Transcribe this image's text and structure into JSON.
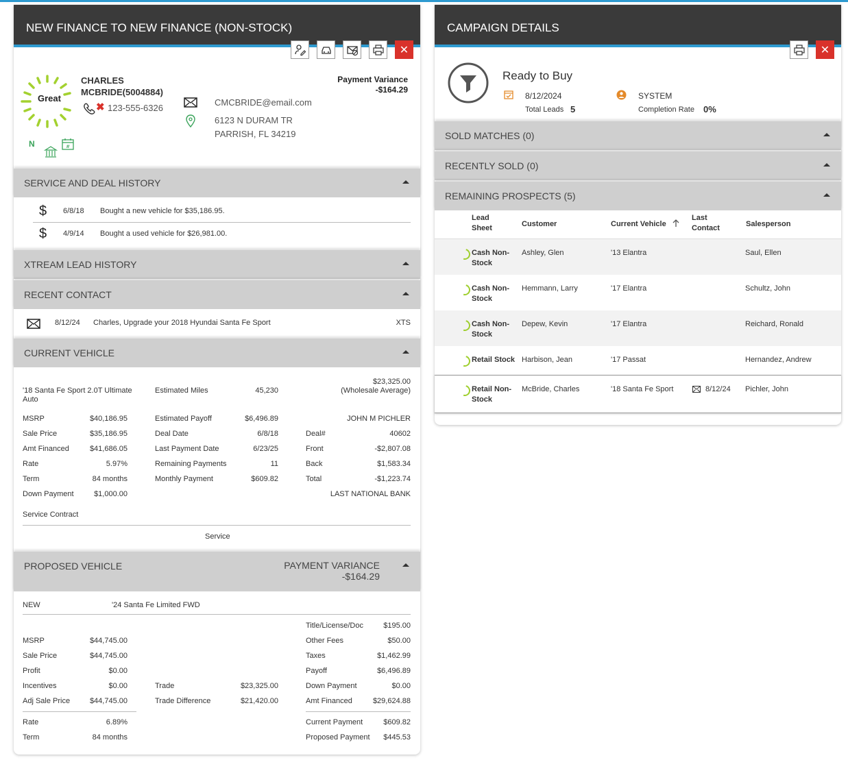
{
  "left": {
    "title": "NEW FINANCE TO NEW FINANCE (NON-STOCK)",
    "customer": {
      "score": "Great",
      "name_line1": "CHARLES",
      "name_line2": "MCBRIDE(5004884)",
      "phone": "123-555-6326",
      "email": "CMCBRIDE@email.com",
      "address1": "6123 N DURAM TR",
      "address2": "PARRISH, FL 34219",
      "flag": "N",
      "pv_label": "Payment Variance",
      "pv_value": "-$164.29"
    },
    "service_deal": {
      "title": "SERVICE AND DEAL HISTORY",
      "items": [
        {
          "date": "6/8/18",
          "text": "Bought a new vehicle for $35,186.95."
        },
        {
          "date": "4/9/14",
          "text": "Bought a used vehicle for $26,981.00."
        }
      ]
    },
    "xtream": {
      "title": "XTREAM LEAD HISTORY"
    },
    "recent_contact": {
      "title": "RECENT CONTACT",
      "date": "8/12/24",
      "text": "Charles, Upgrade your 2018 Hyundai Santa Fe Sport",
      "source": "XTS"
    },
    "current_vehicle": {
      "title": "CURRENT VEHICLE",
      "vehicle_1": "'18 Santa Fe Sport 2.0T Ultimate",
      "vehicle_2": "Auto",
      "est_miles_label": "Estimated Miles",
      "est_miles": "45,230",
      "value": "$23,325.00",
      "value_note": "(Wholesale Average)",
      "rows": [
        {
          "l1": "MSRP",
          "v1": "$40,186.95",
          "l2": "Estimated Payoff",
          "v2": "$6,496.89",
          "l3": "",
          "v3": "JOHN M PICHLER"
        },
        {
          "l1": "Sale Price",
          "v1": "$35,186.95",
          "l2": "Deal Date",
          "v2": "6/8/18",
          "l3": "Deal#",
          "v3": "40602"
        },
        {
          "l1": "Amt Financed",
          "v1": "$41,686.05",
          "l2": "Last Payment Date",
          "v2": "6/23/25",
          "l3": "Front",
          "v3": "-$2,807.08"
        },
        {
          "l1": "Rate",
          "v1": "5.97%",
          "l2": "Remaining Payments",
          "v2": "11",
          "l3": "Back",
          "v3": "$1,583.34"
        },
        {
          "l1": "Term",
          "v1": "84 months",
          "l2": "Monthly Payment",
          "v2": "$609.82",
          "l3": "Total",
          "v3": "-$1,223.74"
        },
        {
          "l1": "Down Payment",
          "v1": "$1,000.00",
          "l2": "",
          "v2": "",
          "l3": "",
          "v3": "LAST NATIONAL BANK"
        }
      ],
      "service_contract": "Service Contract",
      "service": "Service"
    },
    "proposed_vehicle": {
      "title": "PROPOSED VEHICLE",
      "pv_label": "PAYMENT VARIANCE",
      "pv_value": "-$164.29",
      "condition": "NEW",
      "vehicle": "'24 Santa Fe Limited FWD",
      "title_label": "Title/License/Doc",
      "title_value": "$195.00",
      "rows": [
        {
          "l1": "MSRP",
          "v1": "$44,745.00",
          "l2": "",
          "v2": "",
          "l3": "Other Fees",
          "v3": "$50.00"
        },
        {
          "l1": "Sale Price",
          "v1": "$44,745.00",
          "l2": "",
          "v2": "",
          "l3": "Taxes",
          "v3": "$1,462.99"
        },
        {
          "l1": "Profit",
          "v1": "$0.00",
          "l2": "",
          "v2": "",
          "l3": "Payoff",
          "v3": "$6,496.89"
        },
        {
          "l1": "Incentives",
          "v1": "$0.00",
          "l2": "Trade",
          "v2": "$23,325.00",
          "l3": "Down Payment",
          "v3": "$0.00"
        },
        {
          "l1": "Adj Sale Price",
          "v1": "$44,745.00",
          "l2": "Trade Difference",
          "v2": "$21,420.00",
          "l3": "Amt Financed",
          "v3": "$29,624.88"
        }
      ],
      "rate_label": "Rate",
      "rate": "6.89%",
      "term_label": "Term",
      "term": "84 months",
      "cur_pay_label": "Current Payment",
      "cur_pay": "$609.82",
      "prop_pay_label": "Proposed Payment",
      "prop_pay": "$445.53"
    }
  },
  "right": {
    "title": "CAMPAIGN DETAILS",
    "campaign": {
      "name": "Ready to Buy",
      "date": "8/12/2024",
      "owner": "SYSTEM",
      "total_leads_label": "Total Leads",
      "total_leads": "5",
      "completion_label": "Completion Rate",
      "completion": "0%"
    },
    "sold_matches": "SOLD MATCHES (0)",
    "recently_sold": "RECENTLY SOLD (0)",
    "remaining": "REMAINING PROSPECTS (5)",
    "table": {
      "h_lead1": "Lead",
      "h_lead2": "Sheet",
      "h_customer": "Customer",
      "h_vehicle": "Current Vehicle",
      "h_last1": "Last",
      "h_last2": "Contact",
      "h_sales": "Salesperson",
      "rows": [
        {
          "lead1": "Cash Non-",
          "lead2": "Stock",
          "customer": "Ashley, Glen",
          "vehicle": "'13 Elantra",
          "last": "",
          "sales": "Saul, Ellen"
        },
        {
          "lead1": "Cash Non-",
          "lead2": "Stock",
          "customer": "Hemmann, Larry",
          "vehicle": "'17 Elantra",
          "last": "",
          "sales": "Schultz, John"
        },
        {
          "lead1": "Cash Non-",
          "lead2": "Stock",
          "customer": "Depew, Kevin",
          "vehicle": "'17 Elantra",
          "last": "",
          "sales": "Reichard, Ronald"
        },
        {
          "lead1": "Retail Stock",
          "lead2": "",
          "customer": "Harbison, Jean",
          "vehicle": "'17 Passat",
          "last": "",
          "sales": "Hernandez, Andrew"
        },
        {
          "lead1": "Retail Non-",
          "lead2": "Stock",
          "customer": "McBride, Charles",
          "vehicle": "'18 Santa Fe Sport",
          "last": "8/12/24",
          "sales": "Pichler, John"
        }
      ]
    }
  },
  "colors": {
    "accent": "#2e9ad0",
    "header": "#3a3a3a",
    "close": "#d9322b",
    "score": "#a3d12f",
    "green": "#3aa35a",
    "orange": "#e48a2a"
  }
}
